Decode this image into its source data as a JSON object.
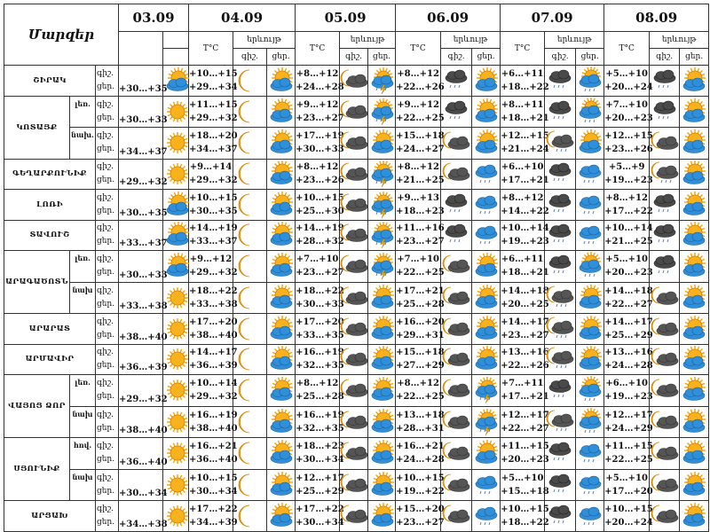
{
  "header": {
    "title": "Մարզեր",
    "temp_label": "T°C",
    "phenomenon_label": "երևույթ",
    "night": "գիշ.",
    "day": "ցեր.",
    "dates": [
      "03.09",
      "04.09",
      "05.09",
      "06.09",
      "07.09",
      "08.09"
    ]
  },
  "rows": [
    {
      "region": "ՇԻՐԱԿ",
      "sub": "",
      "d03": "+30…+35",
      "i03": "sun-cloud",
      "days": [
        [
          "+10…+15",
          "+29…+34",
          "moon",
          "sun-cloud"
        ],
        [
          "+8…+12",
          "+24…+28",
          "moon-cloud",
          "sun-cloud-thunder"
        ],
        [
          "+8…+12",
          "+22…+26",
          "dark-cloud-rain",
          "sun-cloud"
        ],
        [
          "+6…+11",
          "+18…+22",
          "dark-cloud-rain",
          "sun-cloud-rain"
        ],
        [
          "+5…+10",
          "+20…+24",
          "dark-cloud-rain",
          "sun-cloud"
        ]
      ]
    },
    {
      "region": "ԿՈՏԱՅՔ",
      "sub": "լեռ.",
      "span": 2,
      "d03": "+30…+33",
      "i03": "sun",
      "days": [
        [
          "+11…+15",
          "+29…+32",
          "moon",
          "sun-cloud"
        ],
        [
          "+9…+12",
          "+23…+27",
          "moon-cloud",
          "sun-cloud-thunder"
        ],
        [
          "+9…+12",
          "+22…+25",
          "dark-cloud-rain",
          "sun-cloud"
        ],
        [
          "+8…+11",
          "+18…+21",
          "dark-cloud-rain",
          "sun-cloud-rain"
        ],
        [
          "+7…+10",
          "+20…+23",
          "dark-cloud-rain",
          "sun-cloud"
        ]
      ]
    },
    {
      "region": "",
      "sub": "նախ.",
      "d03": "+34…+37",
      "i03": "sun",
      "days": [
        [
          "+18…+20",
          "+34…+37",
          "moon",
          "sun-cloud"
        ],
        [
          "+17…+19",
          "+30…+33",
          "moon-cloud",
          "sun-cloud"
        ],
        [
          "+15…+18",
          "+24…+27",
          "moon-cloud",
          "sun-cloud"
        ],
        [
          "+12…+15",
          "+21…+24",
          "moon-cloud-rain",
          "sun-cloud"
        ],
        [
          "+12…+15",
          "+23…+26",
          "moon-cloud",
          "sun-cloud"
        ]
      ]
    },
    {
      "region": "ԳԵՂԱՐՔՈՒՆԻՔ",
      "sub": "",
      "d03": "+29…+32",
      "i03": "sun",
      "days": [
        [
          "+9…+14",
          "+29…+32",
          "moon",
          "sun-cloud"
        ],
        [
          "+8…+12",
          "+23…+26",
          "moon-cloud",
          "sun-cloud-thunder"
        ],
        [
          "+8…+12",
          "+21…+25",
          "moon-cloud",
          "blue-cloud-rain"
        ],
        [
          "+6…+10",
          "+17…+21",
          "dark-cloud-rain",
          "blue-cloud-rain"
        ],
        [
          "+5…+9",
          "+19…+23",
          "moon-cloud-rain",
          "sun-cloud"
        ]
      ]
    },
    {
      "region": "ԼՈՌԻ",
      "sub": "",
      "d03": "+30…+35",
      "i03": "sun-cloud",
      "days": [
        [
          "+10…+15",
          "+30…+35",
          "moon",
          "sun-cloud"
        ],
        [
          "+10…+15",
          "+25…+30",
          "moon-cloud",
          "sun-cloud-thunder"
        ],
        [
          "+9…+13",
          "+18…+23",
          "dark-cloud-rain",
          "blue-cloud-rain"
        ],
        [
          "+8…+12",
          "+14…+22",
          "dark-cloud-rain",
          "blue-cloud-rain"
        ],
        [
          "+8…+12",
          "+17…+22",
          "dark-cloud-rain",
          "sun-cloud"
        ]
      ]
    },
    {
      "region": "ՏԱՎՈՒՇ",
      "sub": "",
      "d03": "+33…+37",
      "i03": "sun-cloud",
      "days": [
        [
          "+14…+19",
          "+33…+37",
          "moon",
          "sun-cloud"
        ],
        [
          "+14…+19",
          "+28…+32",
          "moon-cloud",
          "sun-cloud-thunder"
        ],
        [
          "+11…+16",
          "+23…+27",
          "dark-cloud-rain",
          "blue-cloud-rain"
        ],
        [
          "+10…+14",
          "+19…+23",
          "dark-cloud-rain",
          "blue-cloud-rain"
        ],
        [
          "+10…+14",
          "+21…+25",
          "dark-cloud-rain",
          "sun-cloud"
        ]
      ]
    },
    {
      "region": "ԱՐԱԳԱԾՈՏՆ",
      "sub": "լեռ.",
      "span": 2,
      "d03": "+30…+33",
      "i03": "sun-cloud",
      "days": [
        [
          "+9…+12",
          "+29…+32",
          "moon",
          "sun-cloud"
        ],
        [
          "+7…+10",
          "+23…+27",
          "moon-cloud",
          "sun-cloud-thunder"
        ],
        [
          "+7…+10",
          "+22…+25",
          "moon-cloud",
          "sun-cloud"
        ],
        [
          "+6…+11",
          "+18…+21",
          "dark-cloud-rain",
          "sun-cloud-rain"
        ],
        [
          "+5…+10",
          "+20…+23",
          "dark-cloud-rain",
          "sun-cloud"
        ]
      ]
    },
    {
      "region": "",
      "sub": "նախ",
      "d03": "+33…+38",
      "i03": "sun",
      "days": [
        [
          "+18…+22",
          "+33…+38",
          "moon",
          "sun-cloud"
        ],
        [
          "+18…+22",
          "+30…+33",
          "moon-cloud",
          "sun-cloud"
        ],
        [
          "+17…+21",
          "+25…+28",
          "moon-cloud",
          "sun-cloud"
        ],
        [
          "+14…+18",
          "+20…+25",
          "moon-cloud-rain",
          "sun-cloud"
        ],
        [
          "+14…+18",
          "+22…+27",
          "moon-cloud",
          "sun-cloud"
        ]
      ]
    },
    {
      "region": "ԱՐԱՐԱՏ",
      "sub": "",
      "d03": "+38…+40",
      "i03": "sun",
      "days": [
        [
          "+17…+20",
          "+38…+40",
          "moon",
          "sun-cloud"
        ],
        [
          "+17…+20",
          "+33…+35",
          "moon-cloud",
          "sun-cloud"
        ],
        [
          "+16…+20",
          "+29…+31",
          "moon-cloud",
          "sun-cloud"
        ],
        [
          "+14…+17",
          "+23…+27",
          "moon-cloud-rain",
          "sun-cloud"
        ],
        [
          "+14…+17",
          "+25…+29",
          "moon-cloud",
          "sun-cloud"
        ]
      ]
    },
    {
      "region": "ԱՐՄԱՎԻՐ",
      "sub": "",
      "d03": "+36…+39",
      "i03": "sun",
      "days": [
        [
          "+14…+17",
          "+36…+39",
          "moon",
          "sun-cloud"
        ],
        [
          "+16…+19",
          "+32…+35",
          "moon-cloud",
          "sun-cloud"
        ],
        [
          "+15…+18",
          "+27…+29",
          "moon-cloud",
          "sun-cloud"
        ],
        [
          "+13…+16",
          "+22…+26",
          "moon-cloud-rain",
          "sun-cloud"
        ],
        [
          "+13…+16",
          "+24…+28",
          "moon-cloud",
          "sun-cloud"
        ]
      ]
    },
    {
      "region": "ՎԱՅՈՑ ՁՈՐ",
      "sub": "լեռ.",
      "span": 2,
      "d03": "+29…+32",
      "i03": "sun",
      "days": [
        [
          "+10…+14",
          "+29…+32",
          "moon",
          "sun-cloud"
        ],
        [
          "+8…+12",
          "+25…+28",
          "moon-cloud",
          "sun-cloud"
        ],
        [
          "+8…+12",
          "+22…+25",
          "moon-cloud",
          "sun-cloud-thunder"
        ],
        [
          "+7…+11",
          "+17…+21",
          "dark-cloud-rain",
          "sun-cloud-rain"
        ],
        [
          "+6…+10",
          "+19…+23",
          "moon-cloud",
          "sun-cloud"
        ]
      ]
    },
    {
      "region": "",
      "sub": "նախ",
      "d03": "+38…+40",
      "i03": "sun",
      "days": [
        [
          "+16…+19",
          "+38…+40",
          "moon",
          "sun-cloud"
        ],
        [
          "+16…+19",
          "+32…+35",
          "moon-cloud",
          "sun-cloud"
        ],
        [
          "+13…+18",
          "+28…+31",
          "moon-cloud",
          "sun-cloud-thunder"
        ],
        [
          "+12…+17",
          "+22…+27",
          "moon-cloud-rain",
          "sun-cloud-rain"
        ],
        [
          "+12…+17",
          "+24…+29",
          "moon-cloud",
          "sun-cloud"
        ]
      ]
    },
    {
      "region": "ՍՅՈՒՆԻՔ",
      "sub": "հով.",
      "span": 2,
      "d03": "+36…+40",
      "i03": "sun",
      "days": [
        [
          "+16…+21",
          "+36…+40",
          "moon",
          "sun-cloud"
        ],
        [
          "+18…+23",
          "+30…+34",
          "moon-cloud",
          "sun-cloud"
        ],
        [
          "+16…+21",
          "+24…+28",
          "moon-cloud",
          "sun-cloud"
        ],
        [
          "+11…+15",
          "+20…+23",
          "dark-cloud-rain",
          "blue-cloud-rain"
        ],
        [
          "+11…+15",
          "+22…+25",
          "moon-cloud",
          "sun-cloud"
        ]
      ]
    },
    {
      "region": "",
      "sub": "նախ",
      "d03": "+30…+34",
      "i03": "sun",
      "days": [
        [
          "+10…+15",
          "+30…+34",
          "moon",
          "sun-cloud"
        ],
        [
          "+12…+17",
          "+25…+29",
          "moon-cloud",
          "sun-cloud"
        ],
        [
          "+10…+15",
          "+19…+22",
          "moon-cloud",
          "blue-cloud-rain"
        ],
        [
          "+5…+10",
          "+15…+18",
          "dark-cloud-rain",
          "blue-cloud-rain"
        ],
        [
          "+5…+10",
          "+17…+20",
          "moon-cloud",
          "sun-cloud"
        ]
      ]
    },
    {
      "region": "ԱՐՑԱԽ",
      "sub": "",
      "d03": "+34…+38",
      "i03": "sun",
      "days": [
        [
          "+17…+22",
          "+34…+39",
          "moon",
          "sun-cloud"
        ],
        [
          "+17…+22",
          "+30…+34",
          "moon-cloud",
          "sun-cloud"
        ],
        [
          "+15…+20",
          "+23…+27",
          "moon-cloud",
          "blue-cloud-rain"
        ],
        [
          "+10…+15",
          "+18…+22",
          "dark-cloud-rain",
          "blue-cloud-rain"
        ],
        [
          "+10…+15",
          "+20…+24",
          "moon-cloud",
          "sun-cloud"
        ]
      ]
    }
  ]
}
